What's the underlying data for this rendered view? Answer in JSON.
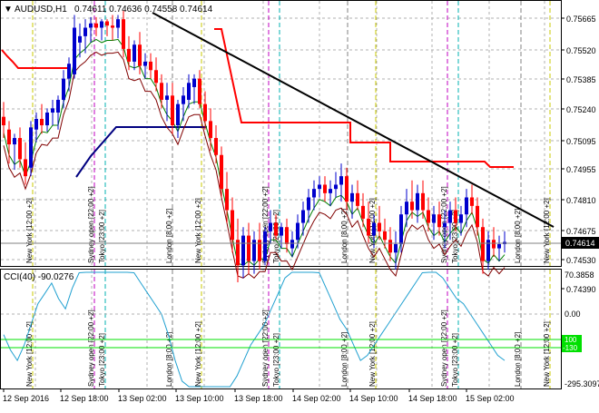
{
  "header": {
    "arrow_glyph": "▼",
    "symbol": "AUDUSD,H1",
    "ohlc": "0.74611 0.74636 0.74558 0.74614"
  },
  "price_axis": {
    "labels": [
      "0.75665",
      "0.75520",
      "0.75385",
      "0.75240",
      "0.75095",
      "0.74955",
      "0.74810",
      "0.74675",
      "0.74530",
      "0.74390"
    ],
    "current_price": "0.74614",
    "current_price_color": "#000000"
  },
  "cci": {
    "title": "CCI(40) -90.0276",
    "labels": [
      "70.3858",
      "0.00",
      "-295.3097"
    ],
    "level_plus": "100",
    "level_minus": "-130",
    "level_color": "#00e000"
  },
  "time_axis": [
    "12 Sep 2016",
    "12 Sep 18:00",
    "13 Sep 02:00",
    "13 Sep 10:00",
    "13 Sep 18:00",
    "14 Sep 02:00",
    "14 Sep 10:00",
    "14 Sep 18:00",
    "15 Sep 02:00"
  ],
  "sessions": {
    "ny": "New York  [12:00 +2]",
    "sydney": "Sydney open  [22:00 +2]",
    "tokyo": "Tokyo  [23:00 +2]",
    "london": "London  [8:00 +2]"
  },
  "colors": {
    "bull": "#0000cc",
    "bear": "#ff0000",
    "trendline": "#000000",
    "red_level": "#ff0000",
    "blue_level": "#000080",
    "ma_green": "#008000",
    "ma_dark": "#800000",
    "cci_line": "#20a0d0",
    "sess_london": "#808080",
    "sess_ny": "#c8c800",
    "sess_sydney": "#c000c0",
    "sess_tokyo": "#00b0b0"
  }
}
